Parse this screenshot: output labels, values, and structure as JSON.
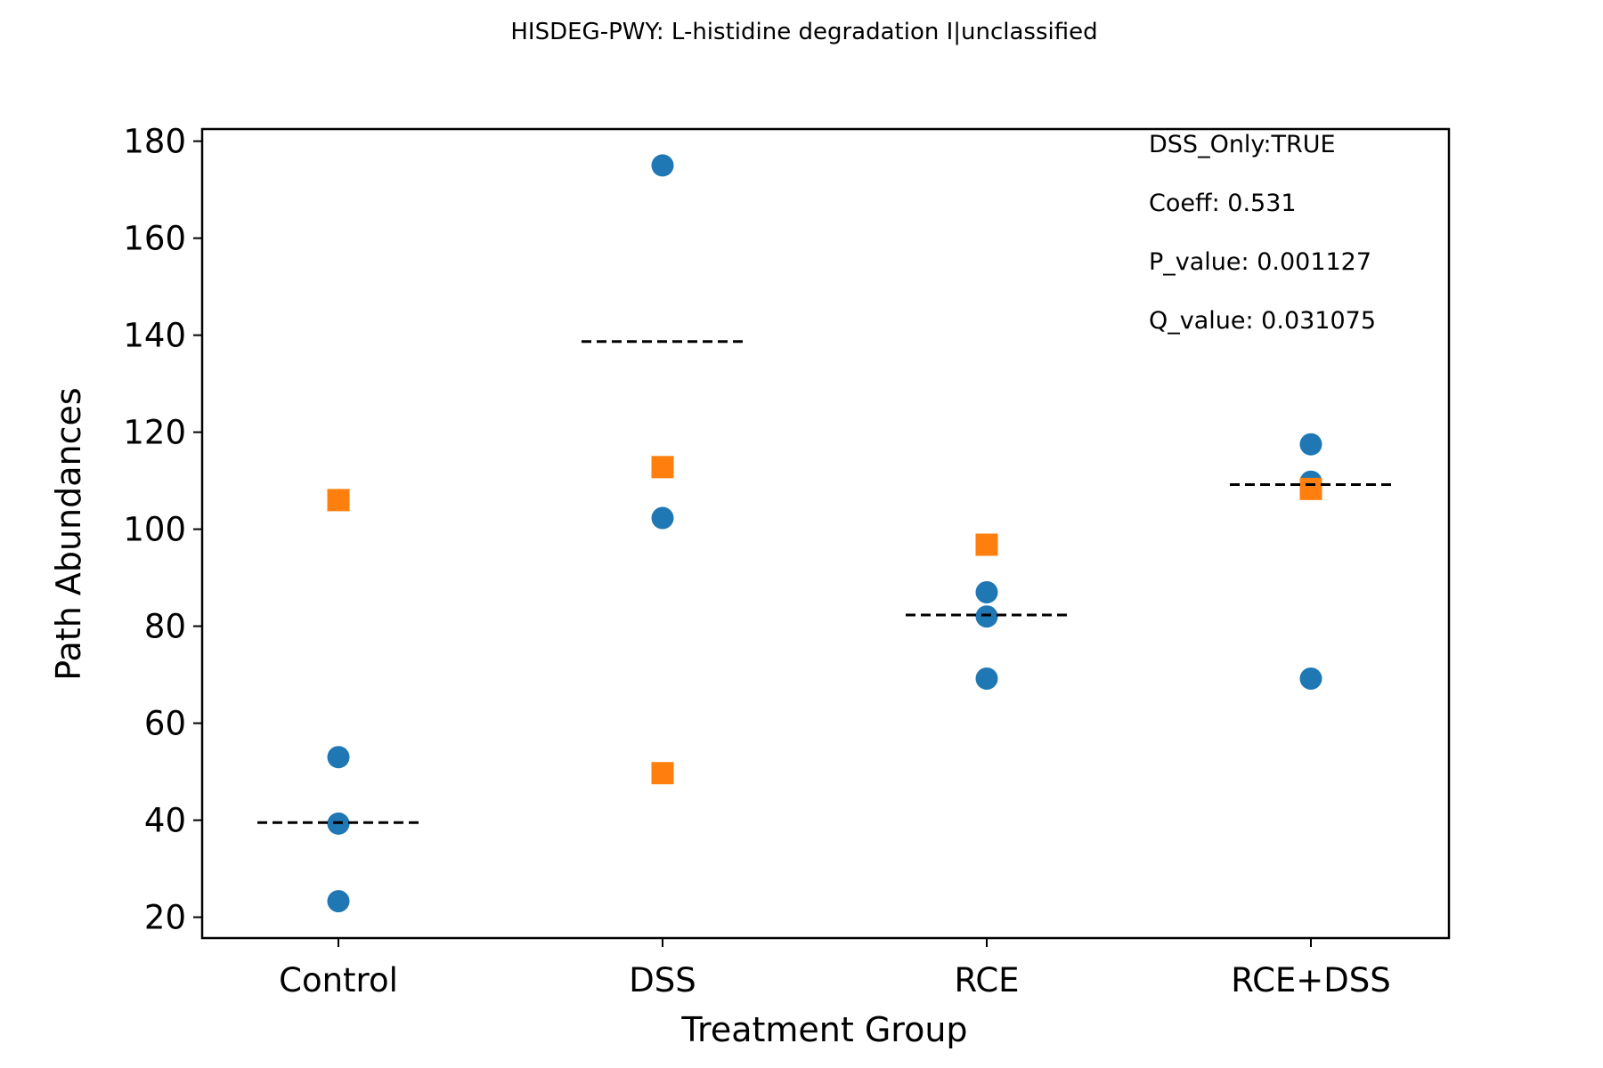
{
  "chart_data": {
    "type": "scatter",
    "title": "HISDEG-PWY: L-histidine degradation I|unclassified",
    "xlabel": "Treatment Group",
    "ylabel": "Path Abundances",
    "categories": [
      "Control",
      "DSS",
      "RCE",
      "RCE+DSS"
    ],
    "ylim": [
      15.7,
      182.5
    ],
    "yticks": [
      20,
      40,
      60,
      80,
      100,
      120,
      140,
      160,
      180
    ],
    "grid": false,
    "series": [
      {
        "marker": "circle",
        "color": "#1f77b4",
        "points": [
          {
            "category": "Control",
            "y": 53.0
          },
          {
            "category": "Control",
            "y": 39.3
          },
          {
            "category": "Control",
            "y": 23.3
          },
          {
            "category": "DSS",
            "y": 175.0
          },
          {
            "category": "DSS",
            "y": 102.3
          },
          {
            "category": "RCE",
            "y": 87.0
          },
          {
            "category": "RCE",
            "y": 82.0
          },
          {
            "category": "RCE",
            "y": 69.2
          },
          {
            "category": "RCE+DSS",
            "y": 117.5
          },
          {
            "category": "RCE+DSS",
            "y": 109.8
          },
          {
            "category": "RCE+DSS",
            "y": 69.2
          }
        ]
      },
      {
        "marker": "square",
        "color": "#ff7f0e",
        "points": [
          {
            "category": "Control",
            "y": 106.0
          },
          {
            "category": "DSS",
            "y": 112.8
          },
          {
            "category": "DSS",
            "y": 49.7
          },
          {
            "category": "RCE",
            "y": 96.8
          },
          {
            "category": "RCE+DSS",
            "y": 108.3
          }
        ]
      }
    ],
    "mean_lines": [
      {
        "category": "Control",
        "y": 39.5
      },
      {
        "category": "DSS",
        "y": 138.7
      },
      {
        "category": "RCE",
        "y": 82.3
      },
      {
        "category": "RCE+DSS",
        "y": 109.2
      }
    ],
    "annotations": [
      "DSS_Only:TRUE",
      "Coeff: 0.531",
      "P_value: 0.001127",
      "Q_value: 0.031075"
    ]
  }
}
